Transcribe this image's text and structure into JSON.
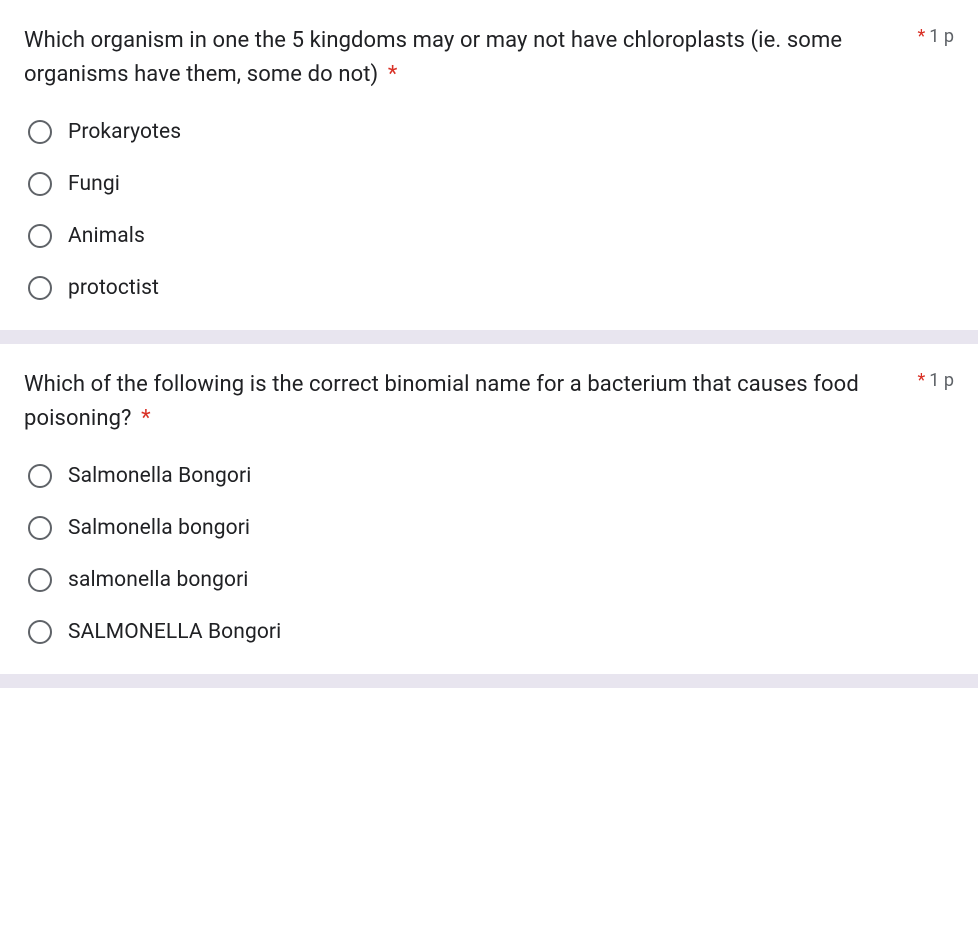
{
  "colors": {
    "text": "#202124",
    "muted": "#5f6368",
    "required": "#d93025",
    "divider": "#e8e5ef",
    "background": "#ffffff",
    "radio_border": "#5f6368"
  },
  "typography": {
    "question_fontsize": 22,
    "option_fontsize": 21,
    "points_fontsize": 18,
    "font_family": "Roboto, Arial, sans-serif"
  },
  "questions": [
    {
      "text": "Which organism in one the 5 kingdoms may or may not have chloroplasts (ie. some organisms have them, some do not)",
      "required": true,
      "points_label": "1 p",
      "options": [
        {
          "label": "Prokaryotes"
        },
        {
          "label": "Fungi"
        },
        {
          "label": "Animals"
        },
        {
          "label": "protoctist"
        }
      ]
    },
    {
      "text": "Which of the following is the correct binomial name for a bacterium that causes food poisoning?",
      "required": true,
      "points_label": "1 p",
      "options": [
        {
          "label": "Salmonella Bongori"
        },
        {
          "label": "Salmonella bongori"
        },
        {
          "label": "salmonella bongori"
        },
        {
          "label": "SALMONELLA Bongori"
        }
      ]
    }
  ]
}
